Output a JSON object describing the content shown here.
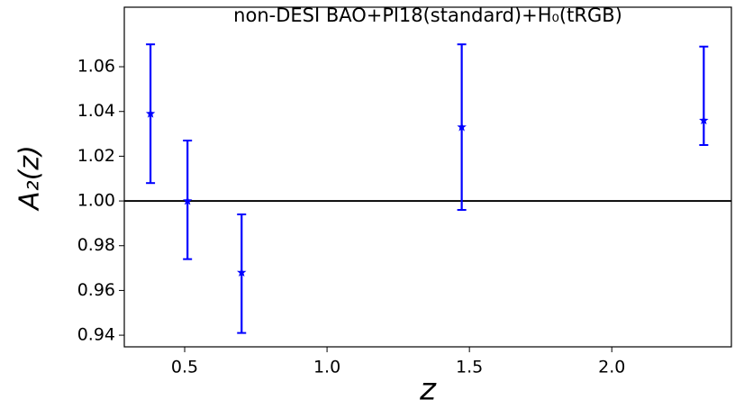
{
  "chart_data": {
    "type": "errorbar",
    "title": "non-DESI BAO+Pl18(standard)+H₀(tRGB)",
    "x_label": "z",
    "y_label": "A₂(z)",
    "x": [
      0.38,
      0.51,
      0.7,
      1.473,
      2.323
    ],
    "values": [
      1.039,
      1.0,
      0.968,
      1.033,
      1.036
    ],
    "errors_low": [
      0.031,
      0.026,
      0.027,
      0.037,
      0.011
    ],
    "errors_high": [
      0.031,
      0.027,
      0.026,
      0.037,
      0.033
    ],
    "color": "#0000ff",
    "hline": {
      "value": 1.0,
      "color": "#000000"
    },
    "xlim": [
      0.288,
      2.42
    ],
    "ylim": [
      0.9348,
      1.0866
    ],
    "xticks": [
      0.5,
      {
        "value": 1.0,
        "label": "1.0"
      },
      1.5,
      {
        "value": 2.0,
        "label": "2.0"
      }
    ],
    "yticks": [
      0.94,
      0.96,
      0.98,
      {
        "value": 1.0,
        "label": "1.00"
      },
      1.02,
      1.04,
      1.06
    ],
    "grid": false
  }
}
